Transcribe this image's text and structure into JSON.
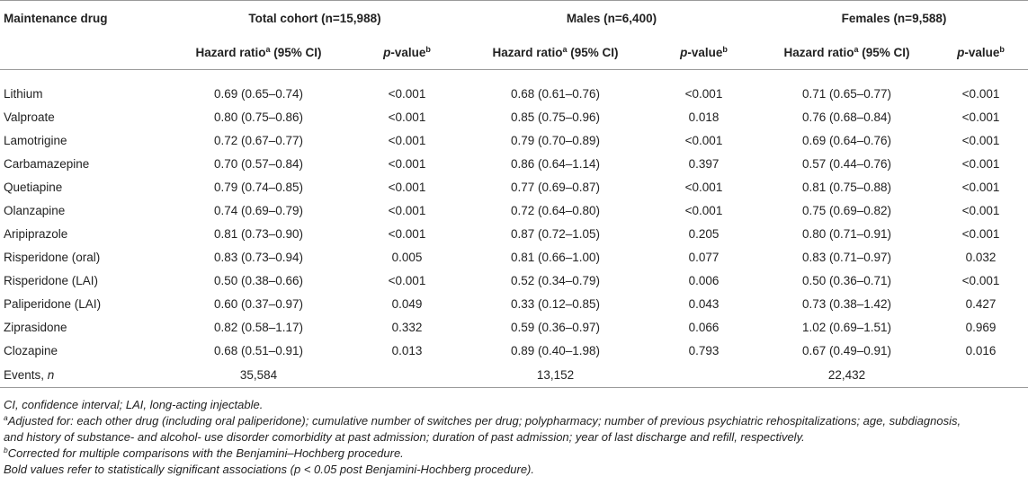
{
  "header": {
    "col_drug": "Maintenance drug",
    "groups": [
      {
        "label": "Total cohort (n=15,988)"
      },
      {
        "label": "Males (n=6,400)"
      },
      {
        "label": "Females (n=9,588)"
      }
    ],
    "hr_label": "Hazard ratio",
    "hr_sup": "a",
    "hr_ci": " (95% CI)",
    "p_label_italic": "p",
    "p_label_rest": "-value",
    "p_sup": "b"
  },
  "rows": [
    {
      "drug": "Lithium",
      "cells": [
        {
          "v": "0.69 (0.65–0.74)",
          "b": true
        },
        {
          "v": "<0.001",
          "b": true
        },
        {
          "v": "0.68 (0.61–0.76)",
          "b": true
        },
        {
          "v": "<0.001",
          "b": true
        },
        {
          "v": "0.71 (0.65–0.77)",
          "b": true
        },
        {
          "v": "<0.001",
          "b": true
        }
      ]
    },
    {
      "drug": "Valproate",
      "cells": [
        {
          "v": "0.80 (0.75–0.86)",
          "b": true
        },
        {
          "v": "<0.001",
          "b": true
        },
        {
          "v": "0.85 (0.75–0.96)",
          "b": true
        },
        {
          "v": "0.018",
          "b": true
        },
        {
          "v": "0.76 (0.68–0.84)",
          "b": true
        },
        {
          "v": "<0.001",
          "b": true
        }
      ]
    },
    {
      "drug": "Lamotrigine",
      "cells": [
        {
          "v": "0.72 (0.67–0.77)",
          "b": true
        },
        {
          "v": "<0.001",
          "b": true
        },
        {
          "v": "0.79 (0.70–0.89)",
          "b": true
        },
        {
          "v": "<0.001",
          "b": true
        },
        {
          "v": "0.69 (0.64–0.76)",
          "b": true
        },
        {
          "v": "<0.001",
          "b": true
        }
      ]
    },
    {
      "drug": "Carbamazepine",
      "cells": [
        {
          "v": "0.70 (0.57–0.84)",
          "b": true
        },
        {
          "v": "<0.001",
          "b": true
        },
        {
          "v": "0.86 (0.64–1.14)",
          "b": false
        },
        {
          "v": "0.397",
          "b": false
        },
        {
          "v": "0.57 (0.44–0.76)",
          "b": true
        },
        {
          "v": "<0.001",
          "b": true
        }
      ]
    },
    {
      "drug": "Quetiapine",
      "cells": [
        {
          "v": "0.79 (0.74–0.85)",
          "b": true
        },
        {
          "v": "<0.001",
          "b": true
        },
        {
          "v": "0.77 (0.69–0.87)",
          "b": true
        },
        {
          "v": "<0.001",
          "b": true
        },
        {
          "v": "0.81 (0.75–0.88)",
          "b": true
        },
        {
          "v": "<0.001",
          "b": true
        }
      ]
    },
    {
      "drug": "Olanzapine",
      "cells": [
        {
          "v": "0.74 (0.69–0.79)",
          "b": true
        },
        {
          "v": "<0.001",
          "b": true
        },
        {
          "v": "0.72 (0.64–0.80)",
          "b": true
        },
        {
          "v": "<0.001",
          "b": true
        },
        {
          "v": "0.75 (0.69–0.82)",
          "b": true
        },
        {
          "v": "<0.001",
          "b": true
        }
      ]
    },
    {
      "drug": "Aripiprazole",
      "cells": [
        {
          "v": "0.81 (0.73–0.90)",
          "b": true
        },
        {
          "v": "<0.001",
          "b": true
        },
        {
          "v": "0.87 (0.72–1.05)",
          "b": false
        },
        {
          "v": "0.205",
          "b": false
        },
        {
          "v": "0.80 (0.71–0.91)",
          "b": true
        },
        {
          "v": "<0.001",
          "b": true
        }
      ]
    },
    {
      "drug": "Risperidone (oral)",
      "cells": [
        {
          "v": "0.83 (0.73–0.94)",
          "b": true
        },
        {
          "v": "0.005",
          "b": true
        },
        {
          "v": "0.81 (0.66–1.00)",
          "b": false
        },
        {
          "v": "0.077",
          "b": false
        },
        {
          "v": "0.83 (0.71–0.97)",
          "b": true
        },
        {
          "v": "0.032",
          "b": true
        }
      ]
    },
    {
      "drug": "Risperidone (LAI)",
      "cells": [
        {
          "v": "0.50 (0.38–0.66)",
          "b": true
        },
        {
          "v": "<0.001",
          "b": true
        },
        {
          "v": "0.52 (0.34–0.79)",
          "b": true
        },
        {
          "v": "0.006",
          "b": true
        },
        {
          "v": "0.50 (0.36–0.71)",
          "b": true
        },
        {
          "v": "<0.001",
          "b": true
        }
      ]
    },
    {
      "drug": "Paliperidone (LAI)",
      "cells": [
        {
          "v": "0.60 (0.37–0.97)",
          "b": true
        },
        {
          "v": "0.049",
          "b": true
        },
        {
          "v": "0.33 (0.12–0.85)",
          "b": true
        },
        {
          "v": "0.043",
          "b": true
        },
        {
          "v": "0.73 (0.38–1.42)",
          "b": false
        },
        {
          "v": "0.427",
          "b": false
        }
      ]
    },
    {
      "drug": "Ziprasidone",
      "cells": [
        {
          "v": "0.82 (0.58–1.17)",
          "b": false
        },
        {
          "v": "0.332",
          "b": false
        },
        {
          "v": "0.59 (0.36–0.97)",
          "b": false
        },
        {
          "v": "0.066",
          "b": false
        },
        {
          "v": "1.02 (0.69–1.51)",
          "b": false
        },
        {
          "v": "0.969",
          "b": false
        }
      ]
    },
    {
      "drug": "Clozapine",
      "cells": [
        {
          "v": "0.68 (0.51–0.91)",
          "b": true
        },
        {
          "v": "0.013",
          "b": true
        },
        {
          "v": "0.89 (0.40–1.98)",
          "b": false
        },
        {
          "v": "0.793",
          "b": false
        },
        {
          "v": "0.67 (0.49–0.91)",
          "b": true
        },
        {
          "v": "0.016",
          "b": true
        }
      ]
    }
  ],
  "events": {
    "label": "Events, ",
    "label_italic": "n",
    "values": [
      "35,584",
      "13,152",
      "22,432"
    ]
  },
  "notes": {
    "abbrev": "CI, confidence interval; LAI, long-acting injectable.",
    "note_a_sup": "a",
    "note_a_line1": "Adjusted for: each other drug (including oral paliperidone); cumulative number of switches per drug; polypharmacy; number of previous psychiatric rehospitalizations; age, subdiagnosis,",
    "note_a_line2": "and history of substance- and alcohol- use disorder comorbidity at past admission; duration of past admission; year of last discharge and refill, respectively.",
    "note_b_sup": "b",
    "note_b": "Corrected for multiple comparisons with the Benjamini–Hochberg procedure.",
    "bold_note": "Bold values refer to statistically significant associations (p < 0.05 post Benjamini-Hochberg procedure)."
  }
}
